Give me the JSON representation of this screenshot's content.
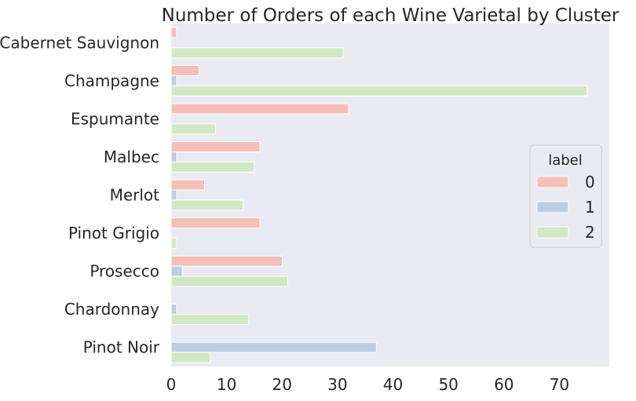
{
  "chart_data": {
    "type": "bar",
    "orientation": "horizontal",
    "title": "Number of Orders of each Wine Varietal by Cluster",
    "xlabel": "",
    "ylabel": "",
    "xlim": [
      0,
      79
    ],
    "x_ticks": [
      "0",
      "10",
      "20",
      "30",
      "40",
      "50",
      "60",
      "70"
    ],
    "grid": false,
    "legend_title": "label",
    "legend_position": "center-right",
    "categories": [
      "Cabernet Sauvignon",
      "Champagne",
      "Espumante",
      "Malbec",
      "Merlot",
      "Pinot Grigio",
      "Prosecco",
      "Chardonnay",
      "Pinot Noir"
    ],
    "series": [
      {
        "name": "0",
        "color": "#f4bfb7",
        "values": [
          1,
          5,
          32,
          16,
          6,
          16,
          20,
          0,
          0
        ]
      },
      {
        "name": "1",
        "color": "#bccfe1",
        "values": [
          0,
          1,
          0,
          1,
          1,
          0,
          2,
          1,
          37
        ]
      },
      {
        "name": "2",
        "color": "#d2e8c5",
        "values": [
          31,
          75,
          8,
          15,
          13,
          1,
          21,
          14,
          7
        ]
      }
    ],
    "background_color": "#eaeaf2"
  }
}
